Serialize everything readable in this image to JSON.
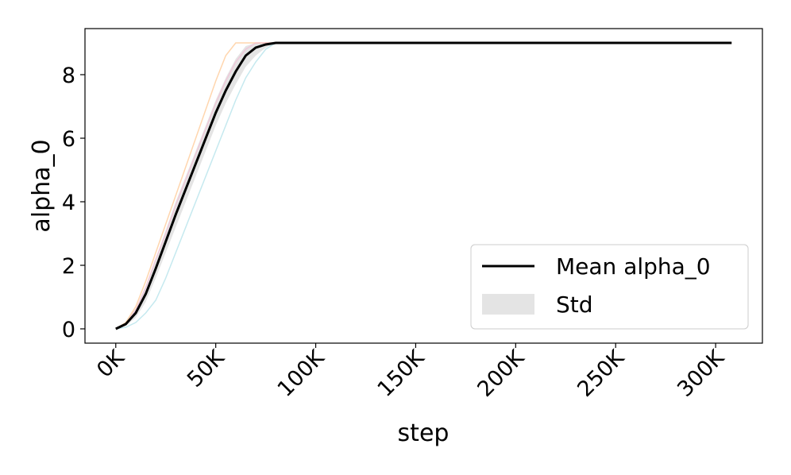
{
  "chart_data": {
    "type": "line",
    "x_label": "step",
    "y_label": "alpha_0",
    "x": [
      0,
      5000,
      10000,
      15000,
      20000,
      25000,
      30000,
      35000,
      40000,
      45000,
      50000,
      55000,
      60000,
      65000,
      70000,
      75000,
      80000,
      85000,
      308000
    ],
    "series": [
      {
        "name": "Mean alpha_0",
        "color": "#000000",
        "values": [
          0,
          0.15,
          0.5,
          1.1,
          1.9,
          2.75,
          3.6,
          4.4,
          5.2,
          6.0,
          6.8,
          7.5,
          8.1,
          8.6,
          8.85,
          8.95,
          9,
          9,
          9
        ]
      },
      {
        "name": "Std",
        "color": "#d9d9d9",
        "lower": [
          0,
          0.1,
          0.35,
          0.85,
          1.6,
          2.4,
          3.2,
          4.0,
          4.8,
          5.6,
          6.4,
          7.1,
          7.7,
          8.25,
          8.6,
          8.85,
          9,
          9,
          9
        ],
        "upper": [
          0,
          0.2,
          0.65,
          1.35,
          2.2,
          3.1,
          4.0,
          4.8,
          5.6,
          6.4,
          7.2,
          7.9,
          8.5,
          8.9,
          9,
          9,
          9,
          9,
          9
        ]
      }
    ],
    "runs": [
      {
        "color": "#9edae5",
        "values": [
          0,
          0.05,
          0.2,
          0.5,
          0.9,
          1.6,
          2.4,
          3.2,
          4.0,
          4.8,
          5.6,
          6.4,
          7.2,
          7.9,
          8.4,
          8.8,
          9,
          9,
          9
        ]
      },
      {
        "color": "#ffbb78",
        "values": [
          0,
          0.2,
          0.7,
          1.5,
          2.4,
          3.3,
          4.2,
          5.1,
          6.0,
          6.9,
          7.8,
          8.6,
          9,
          9,
          9,
          9,
          9,
          9,
          9
        ]
      },
      {
        "color": "#f7b6d2",
        "values": [
          0,
          0.15,
          0.6,
          1.3,
          2.2,
          3.0,
          3.9,
          4.7,
          5.5,
          6.3,
          7.1,
          7.8,
          8.4,
          8.8,
          9,
          9,
          9,
          9,
          9
        ]
      }
    ],
    "xlim": [
      -15400,
      323400
    ],
    "ylim": [
      -0.45,
      9.45
    ],
    "xticks": [
      {
        "value": 0,
        "label": "0K"
      },
      {
        "value": 50000,
        "label": "50K"
      },
      {
        "value": 100000,
        "label": "100K"
      },
      {
        "value": 150000,
        "label": "150K"
      },
      {
        "value": 200000,
        "label": "200K"
      },
      {
        "value": 250000,
        "label": "250K"
      },
      {
        "value": 300000,
        "label": "300K"
      }
    ],
    "yticks": [
      0,
      2,
      4,
      6,
      8
    ],
    "legend": "lower right"
  }
}
